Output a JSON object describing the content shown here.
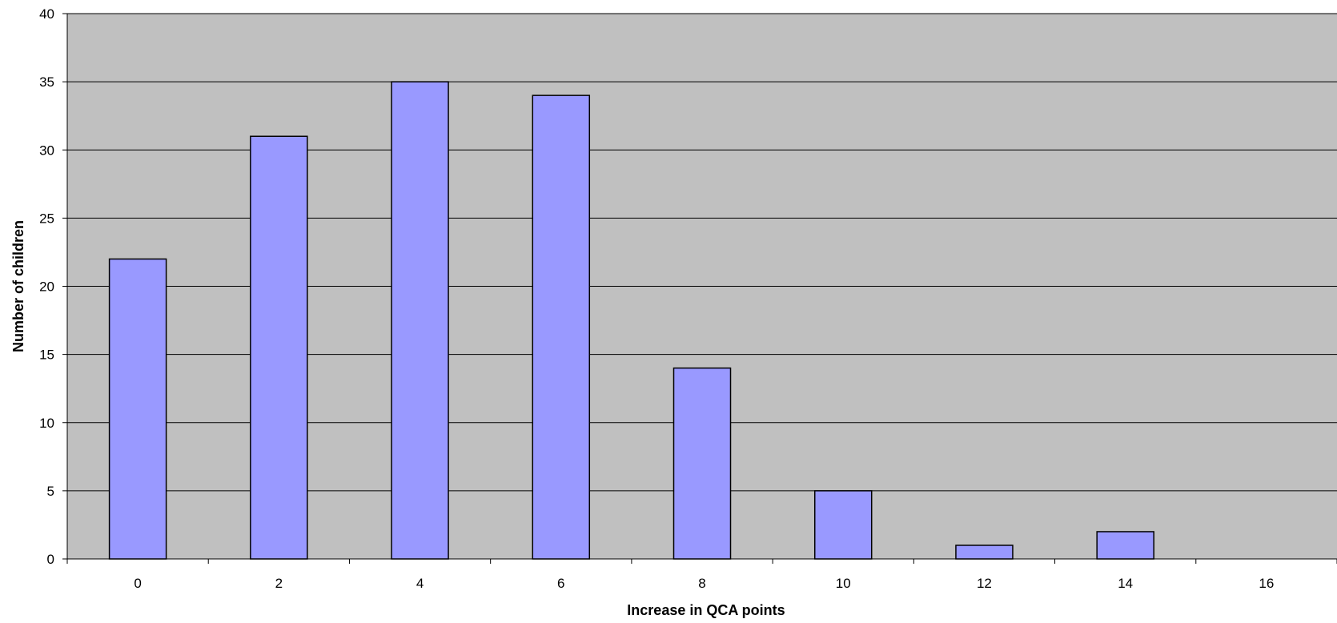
{
  "chart_data": {
    "type": "bar",
    "title": "",
    "xlabel": "Increase in QCA points",
    "ylabel": "Number of children",
    "categories": [
      "0",
      "2",
      "4",
      "6",
      "8",
      "10",
      "12",
      "14",
      "16"
    ],
    "values": [
      22,
      31,
      35,
      34,
      14,
      5,
      1,
      2,
      0
    ],
    "ylim": [
      0,
      40
    ],
    "yticks": [
      "0",
      "5",
      "10",
      "15",
      "20",
      "25",
      "30",
      "35",
      "40"
    ],
    "grid": true,
    "legend": "none",
    "colors": {
      "plot_background": "#c0c0c0",
      "bar_fill": "#9999ff",
      "bar_stroke": "#000000",
      "gridline": "#000000"
    }
  }
}
